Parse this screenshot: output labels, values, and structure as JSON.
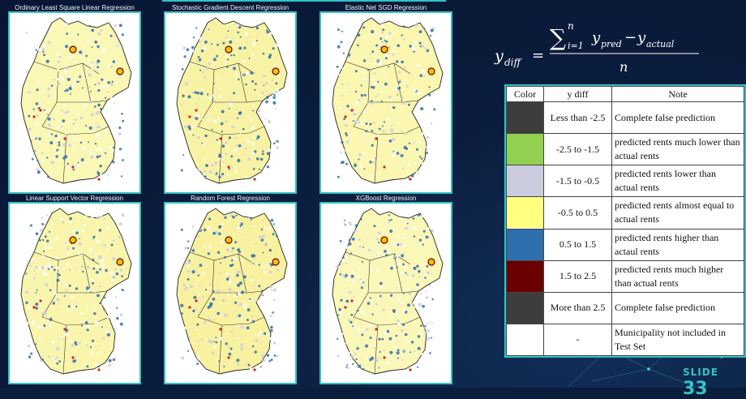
{
  "maps": [
    {
      "title": "Ordinary Least Square Linear Regression"
    },
    {
      "title": "Stochastic Gradient Descent Regression"
    },
    {
      "title": "Elastic Net SGD Regression"
    },
    {
      "title": "Linear Support Vector Regression"
    },
    {
      "title": "Random Forest Regression"
    },
    {
      "title": "XGBoost Regression"
    }
  ],
  "formula": {
    "lhs_var": "y",
    "lhs_sub": "diff",
    "sum_sup": "n",
    "sum_sub": "i=1",
    "pred_sub": "pred",
    "actual_sub": "actual",
    "denominator": "n"
  },
  "legend": {
    "headers": [
      "Color",
      "y diff",
      "Note"
    ],
    "rows": [
      {
        "color": "#3d3d3d",
        "range": "Less than -2.5",
        "note": "Complete false prediction"
      },
      {
        "color": "#92d050",
        "range": "-2.5 to -1.5",
        "note": "predicted rents much lower than actual rents"
      },
      {
        "color": "#ccccdf",
        "range": "-1.5 to -0.5",
        "note": "predicted rents lower than actual rents"
      },
      {
        "color": "#ffff80",
        "range": "-0.5 to 0.5",
        "note": "predicted rents almost equal to actual rents"
      },
      {
        "color": "#2e6fad",
        "range": "0.5 to 1.5",
        "note": "predicted rents higher than actaul rents"
      },
      {
        "color": "#6b0000",
        "range": "1.5 to 2.5",
        "note": "predicted rents much higher than actual rents"
      },
      {
        "color": "#3d3d3d",
        "range": "More than 2.5",
        "note": "Complete false prediction"
      },
      {
        "color": "#ffffff",
        "range": "-",
        "note": "Municipality not included in Test Set"
      }
    ]
  },
  "slide": {
    "word": "SLIDE",
    "number": "33"
  },
  "colors": {
    "accent": "#35c2c6",
    "background": "#0b1d3d"
  }
}
